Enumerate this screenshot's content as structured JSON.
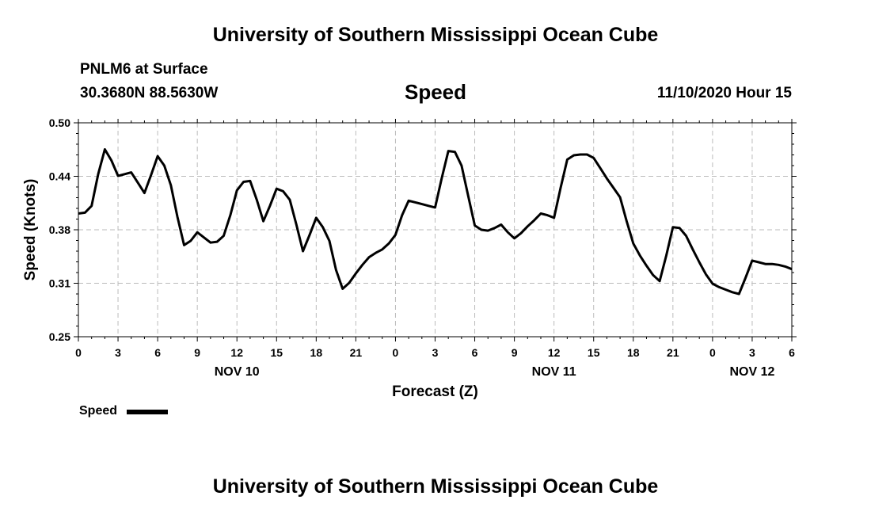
{
  "header": {
    "title_top": "University of Southern Mississippi Ocean Cube",
    "station": "PNLM6 at Surface",
    "coordinates": "30.3680N 88.5630W",
    "parameter": "Speed",
    "datetime": "11/10/2020 Hour 15",
    "title_bottom": "University of Southern Mississippi Ocean Cube"
  },
  "legend": {
    "label": "Speed",
    "color": "#000000"
  },
  "chart_data": {
    "type": "line",
    "title": "Speed",
    "xlabel": "Forecast (Z)",
    "ylabel": "Speed (Knots)",
    "xlim": [
      0,
      54
    ],
    "ylim": [
      0.25,
      0.5
    ],
    "y_ticks": [
      "0.25",
      "0.31",
      "0.38",
      "0.44",
      "0.50"
    ],
    "y_tick_values": [
      0.25,
      0.3125,
      0.375,
      0.4375,
      0.5
    ],
    "x_tick_labels": [
      "0",
      "3",
      "6",
      "9",
      "12",
      "15",
      "18",
      "21",
      "0",
      "3",
      "6",
      "9",
      "12",
      "15",
      "18",
      "21",
      "0",
      "3",
      "6"
    ],
    "day_labels": [
      {
        "label": "NOV 10",
        "hour": 12
      },
      {
        "label": "NOV 11",
        "hour": 36
      },
      {
        "label": "NOV 12",
        "hour": 51
      }
    ],
    "grid": true,
    "series": [
      {
        "name": "Speed",
        "x": [
          0,
          0.5,
          1,
          1.5,
          2,
          2.5,
          3,
          3.5,
          4,
          4.5,
          5,
          5.5,
          6,
          6.5,
          7,
          7.5,
          8,
          8.5,
          9,
          9.5,
          10,
          10.5,
          11,
          11.5,
          12,
          12.5,
          13,
          13.5,
          14,
          14.5,
          15,
          15.5,
          16,
          16.5,
          17,
          17.5,
          18,
          18.5,
          19,
          19.5,
          20,
          20.5,
          21,
          21.5,
          22,
          22.5,
          23,
          23.5,
          24,
          24.5,
          25,
          25.5,
          26,
          26.5,
          27,
          27.5,
          28,
          28.5,
          29,
          29.5,
          30,
          30.5,
          31,
          31.5,
          32,
          32.5,
          33,
          33.5,
          34,
          34.5,
          35,
          35.5,
          36,
          36.5,
          37,
          37.5,
          38,
          38.5,
          39,
          39.5,
          40,
          40.5,
          41,
          41.5,
          42,
          42.5,
          43,
          43.5,
          44,
          44.5,
          45,
          45.5,
          46,
          46.5,
          47,
          47.5,
          48,
          48.5,
          49,
          49.5,
          50,
          50.5,
          51,
          51.5,
          52,
          52.5,
          53,
          53.5,
          54
        ],
        "values": [
          0.394,
          0.395,
          0.403,
          0.44,
          0.469,
          0.456,
          0.438,
          0.44,
          0.442,
          0.43,
          0.418,
          0.439,
          0.461,
          0.45,
          0.427,
          0.39,
          0.357,
          0.362,
          0.372,
          0.366,
          0.36,
          0.361,
          0.368,
          0.392,
          0.421,
          0.431,
          0.432,
          0.41,
          0.385,
          0.403,
          0.423,
          0.42,
          0.41,
          0.381,
          0.35,
          0.369,
          0.389,
          0.378,
          0.362,
          0.328,
          0.306,
          0.313,
          0.324,
          0.334,
          0.343,
          0.348,
          0.352,
          0.359,
          0.369,
          0.392,
          0.409,
          0.407,
          0.405,
          0.403,
          0.401,
          0.435,
          0.467,
          0.466,
          0.45,
          0.415,
          0.38,
          0.375,
          0.374,
          0.377,
          0.381,
          0.372,
          0.365,
          0.371,
          0.379,
          0.386,
          0.394,
          0.392,
          0.389,
          0.424,
          0.457,
          0.462,
          0.463,
          0.463,
          0.459,
          0.447,
          0.435,
          0.424,
          0.413,
          0.385,
          0.359,
          0.345,
          0.333,
          0.322,
          0.315,
          0.345,
          0.378,
          0.377,
          0.368,
          0.352,
          0.337,
          0.323,
          0.312,
          0.308,
          0.305,
          0.302,
          0.3,
          0.319,
          0.339,
          0.337,
          0.335,
          0.335,
          0.334,
          0.332,
          0.329
        ]
      }
    ]
  }
}
